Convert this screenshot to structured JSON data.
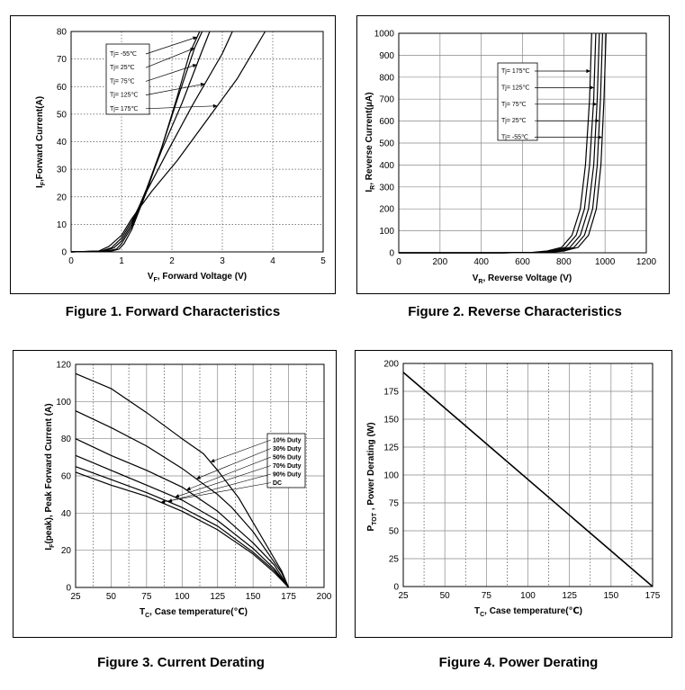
{
  "chart_data": [
    {
      "type": "line",
      "id": "forward",
      "caption": "Figure 1. Forward Characteristics",
      "xlabel": "VF, Forward Voltage (V)",
      "ylabel": "IF,Forward Current(A)",
      "xlim": [
        0,
        5
      ],
      "ylim": [
        0,
        80
      ],
      "xticks": [
        0,
        1,
        2,
        3,
        4,
        5
      ],
      "yticks": [
        0,
        10,
        20,
        30,
        40,
        50,
        60,
        70,
        80
      ],
      "grid": "dotted",
      "legend": [
        "Tj= -55℃",
        "Tj= 25℃",
        "Tj= 75℃",
        "Tj= 125℃",
        "Tj= 175℃"
      ],
      "series": [
        {
          "name": "Tj= -55℃",
          "points": [
            [
              0,
              0
            ],
            [
              0.8,
              0.3
            ],
            [
              0.95,
              1
            ],
            [
              1.05,
              3
            ],
            [
              1.2,
              8
            ],
            [
              1.5,
              22
            ],
            [
              1.8,
              38
            ],
            [
              2.1,
              56
            ],
            [
              2.35,
              72
            ],
            [
              2.55,
              80
            ]
          ]
        },
        {
          "name": "Tj= 25℃",
          "points": [
            [
              0,
              0
            ],
            [
              0.7,
              0.3
            ],
            [
              0.9,
              1
            ],
            [
              1.0,
              3
            ],
            [
              1.2,
              9
            ],
            [
              1.5,
              23
            ],
            [
              1.8,
              38
            ],
            [
              2.1,
              55
            ],
            [
              2.45,
              74
            ],
            [
              2.6,
              80
            ]
          ]
        },
        {
          "name": "Tj= 75℃",
          "points": [
            [
              0,
              0
            ],
            [
              0.65,
              0.3
            ],
            [
              0.85,
              1.5
            ],
            [
              1.0,
              4
            ],
            [
              1.2,
              10
            ],
            [
              1.5,
              23
            ],
            [
              1.8,
              37
            ],
            [
              2.2,
              54
            ],
            [
              2.6,
              73
            ],
            [
              2.75,
              80
            ]
          ]
        },
        {
          "name": "Tj= 125℃",
          "points": [
            [
              0,
              0
            ],
            [
              0.6,
              0.3
            ],
            [
              0.8,
              1.5
            ],
            [
              1.0,
              5
            ],
            [
              1.2,
              11
            ],
            [
              1.5,
              22
            ],
            [
              1.9,
              36
            ],
            [
              2.4,
              53
            ],
            [
              3.0,
              72
            ],
            [
              3.2,
              80
            ]
          ]
        },
        {
          "name": "Tj= 175℃",
          "points": [
            [
              0,
              0
            ],
            [
              0.55,
              0.3
            ],
            [
              0.75,
              2
            ],
            [
              1.0,
              6
            ],
            [
              1.2,
              12
            ],
            [
              1.6,
              22
            ],
            [
              2.1,
              33
            ],
            [
              2.7,
              48
            ],
            [
              3.3,
              63
            ],
            [
              3.85,
              80
            ]
          ]
        }
      ]
    },
    {
      "type": "line",
      "id": "reverse",
      "caption": "Figure 2. Reverse Characteristics",
      "xlabel": "VR, Reverse Voltage (V)",
      "ylabel": "IR, Reverse Current(μA)",
      "xlim": [
        0,
        1200
      ],
      "ylim": [
        0,
        1000
      ],
      "xticks": [
        0,
        200,
        400,
        600,
        800,
        1000,
        1200
      ],
      "yticks": [
        0,
        100,
        200,
        300,
        400,
        500,
        600,
        700,
        800,
        900,
        1000
      ],
      "grid": "solid",
      "legend": [
        "Tj= 175℃",
        "Tj= 125℃",
        "Tj= 75℃",
        "Tj= 25℃",
        "Tj= -55℃"
      ],
      "series": [
        {
          "name": "Tj= 175℃",
          "points": [
            [
              0,
              0
            ],
            [
              500,
              0
            ],
            [
              650,
              2
            ],
            [
              720,
              8
            ],
            [
              790,
              25
            ],
            [
              840,
              80
            ],
            [
              880,
              200
            ],
            [
              905,
              400
            ],
            [
              925,
              700
            ],
            [
              935,
              1000
            ]
          ]
        },
        {
          "name": "Tj= 125℃",
          "points": [
            [
              0,
              0
            ],
            [
              500,
              0
            ],
            [
              670,
              2
            ],
            [
              740,
              8
            ],
            [
              810,
              25
            ],
            [
              860,
              80
            ],
            [
              900,
              200
            ],
            [
              925,
              400
            ],
            [
              945,
              700
            ],
            [
              955,
              1000
            ]
          ]
        },
        {
          "name": "Tj= 75℃",
          "points": [
            [
              0,
              0
            ],
            [
              500,
              0
            ],
            [
              690,
              2
            ],
            [
              760,
              8
            ],
            [
              830,
              25
            ],
            [
              880,
              80
            ],
            [
              920,
              200
            ],
            [
              945,
              400
            ],
            [
              962,
              700
            ],
            [
              972,
              1000
            ]
          ]
        },
        {
          "name": "Tj= 25℃",
          "points": [
            [
              0,
              0
            ],
            [
              500,
              0
            ],
            [
              710,
              2
            ],
            [
              780,
              8
            ],
            [
              850,
              25
            ],
            [
              900,
              80
            ],
            [
              940,
              200
            ],
            [
              962,
              400
            ],
            [
              978,
              700
            ],
            [
              988,
              1000
            ]
          ]
        },
        {
          "name": "Tj= -55℃",
          "points": [
            [
              0,
              0
            ],
            [
              500,
              0
            ],
            [
              730,
              2
            ],
            [
              800,
              8
            ],
            [
              870,
              25
            ],
            [
              920,
              80
            ],
            [
              958,
              200
            ],
            [
              980,
              400
            ],
            [
              995,
              700
            ],
            [
              1005,
              1000
            ]
          ]
        }
      ]
    },
    {
      "type": "line",
      "id": "current-derating",
      "caption": "Figure 3. Current Derating",
      "xlabel": "TC, Case temperature(℃)",
      "ylabel": "IF(peak), Peak Forward Current (A)",
      "xlim": [
        25,
        200
      ],
      "ylim": [
        0,
        120
      ],
      "xticks": [
        25,
        50,
        75,
        100,
        125,
        150,
        175,
        200
      ],
      "yticks": [
        0,
        20,
        40,
        60,
        80,
        100,
        120
      ],
      "grid": "solid-major-dotted-minor",
      "legend": [
        "10% Duty",
        "30% Duty",
        "50% Duty",
        "70% Duty",
        "90% Duty",
        "DC"
      ],
      "series": [
        {
          "name": "10% Duty",
          "points": [
            [
              25,
              115
            ],
            [
              50,
              107
            ],
            [
              75,
              94
            ],
            [
              100,
              80
            ],
            [
              115,
              72
            ],
            [
              125,
              63
            ],
            [
              140,
              48
            ],
            [
              150,
              35
            ],
            [
              160,
              22
            ],
            [
              170,
              9
            ],
            [
              175,
              0
            ]
          ]
        },
        {
          "name": "30% Duty",
          "points": [
            [
              25,
              95
            ],
            [
              50,
              86
            ],
            [
              75,
              76
            ],
            [
              100,
              64
            ],
            [
              125,
              50
            ],
            [
              135,
              43
            ],
            [
              150,
              30
            ],
            [
              160,
              19
            ],
            [
              170,
              8
            ],
            [
              175,
              0
            ]
          ]
        },
        {
          "name": "50% Duty",
          "points": [
            [
              25,
              80
            ],
            [
              50,
              71
            ],
            [
              75,
              63
            ],
            [
              100,
              54
            ],
            [
              125,
              41
            ],
            [
              150,
              24
            ],
            [
              165,
              12
            ],
            [
              175,
              0
            ]
          ]
        },
        {
          "name": "70% Duty",
          "points": [
            [
              25,
              71
            ],
            [
              50,
              63
            ],
            [
              75,
              55
            ],
            [
              100,
              47
            ],
            [
              125,
              36
            ],
            [
              150,
              21
            ],
            [
              165,
              10
            ],
            [
              175,
              0
            ]
          ]
        },
        {
          "name": "90% Duty",
          "points": [
            [
              25,
              65
            ],
            [
              50,
              58
            ],
            [
              75,
              51
            ],
            [
              100,
              43
            ],
            [
              125,
              33
            ],
            [
              150,
              19
            ],
            [
              165,
              9
            ],
            [
              175,
              0
            ]
          ]
        },
        {
          "name": "DC",
          "points": [
            [
              25,
              62
            ],
            [
              50,
              55
            ],
            [
              75,
              49
            ],
            [
              100,
              41
            ],
            [
              125,
              31
            ],
            [
              150,
              18
            ],
            [
              165,
              8
            ],
            [
              175,
              0
            ]
          ]
        }
      ]
    },
    {
      "type": "line",
      "id": "power-derating",
      "caption": "Figure 4. Power Derating",
      "xlabel": "TC, Case temperature(℃)",
      "ylabel": "PTOT , Power Derating (W)",
      "xlim": [
        25,
        175
      ],
      "ylim": [
        0,
        200
      ],
      "xticks": [
        25,
        50,
        75,
        100,
        125,
        150,
        175
      ],
      "yticks": [
        0,
        25,
        50,
        75,
        100,
        125,
        150,
        175,
        200
      ],
      "grid": "solid-major-dotted-minor",
      "series": [
        {
          "points": [
            [
              25,
              192
            ],
            [
              175,
              0
            ]
          ]
        }
      ]
    }
  ]
}
